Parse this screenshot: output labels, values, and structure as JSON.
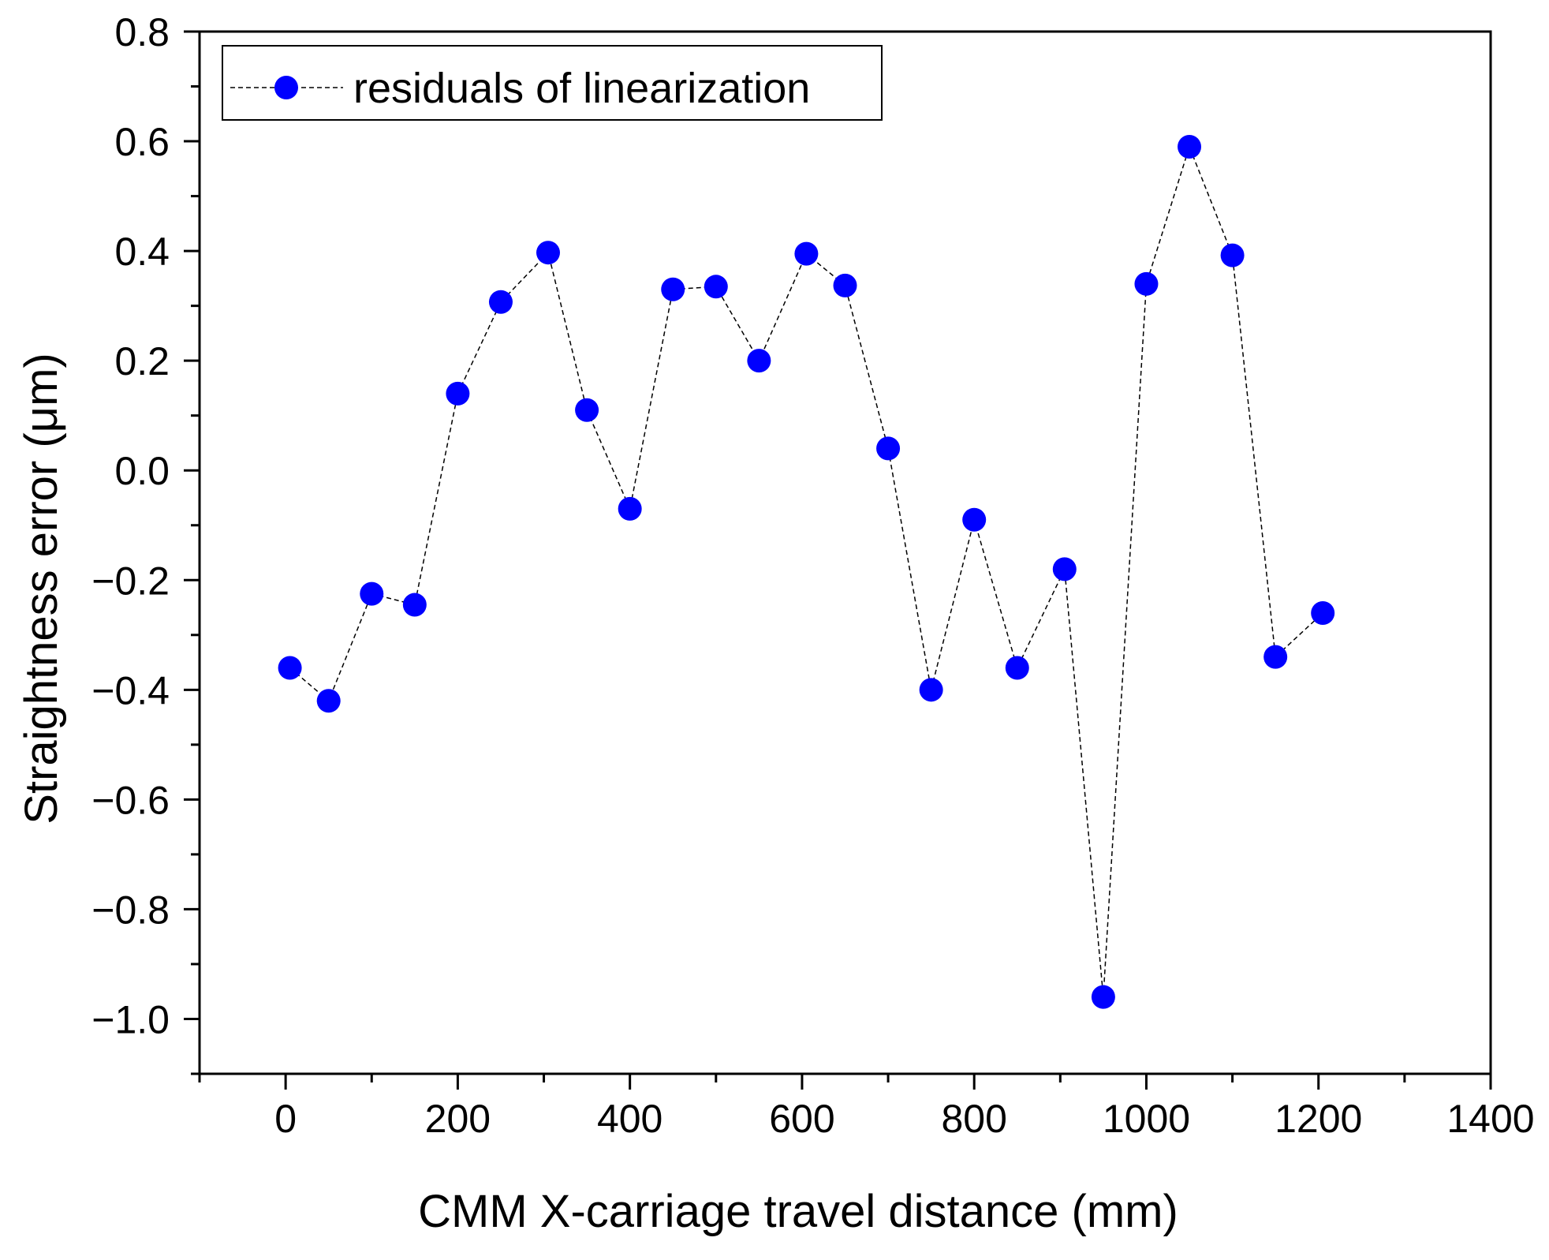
{
  "chart_data": {
    "type": "line",
    "title": "",
    "xlabel": "CMM X-carriage travel distance (mm)",
    "ylabel": "Straightness error (μm)",
    "xlim": [
      -100,
      1400
    ],
    "ylim": [
      -1.1,
      0.8
    ],
    "x_ticks": [
      0,
      200,
      400,
      600,
      800,
      1000,
      1200,
      1400
    ],
    "x_tick_labels": [
      "0",
      "200",
      "400",
      "600",
      "800",
      "1000",
      "1200",
      "1400"
    ],
    "x_minor_step": 100,
    "y_ticks": [
      -1.0,
      -0.8,
      -0.6,
      -0.4,
      -0.2,
      0.0,
      0.2,
      0.4,
      0.6,
      0.8
    ],
    "y_tick_labels": [
      "−1.0",
      "−0.8",
      "−0.6",
      "−0.4",
      "−0.2",
      "0.0",
      "0.2",
      "0.4",
      "0.6",
      "0.8"
    ],
    "y_minor_step": 0.1,
    "grid": false,
    "legend_position": "top-left",
    "series": [
      {
        "name": "residuals of linearization",
        "color": "#0000ff",
        "line_color": "#000000",
        "line_style": "dashed",
        "marker": "circle",
        "x": [
          5,
          50,
          100,
          150,
          200,
          250,
          305,
          350,
          400,
          450,
          500,
          550,
          605,
          650,
          700,
          750,
          800,
          850,
          905,
          950,
          1000,
          1050,
          1100,
          1150,
          1205
        ],
        "y": [
          -0.36,
          -0.42,
          -0.225,
          -0.245,
          0.14,
          0.307,
          0.397,
          0.11,
          -0.07,
          0.33,
          0.335,
          0.2,
          0.395,
          0.337,
          0.04,
          -0.4,
          -0.09,
          -0.36,
          -0.18,
          -0.96,
          0.34,
          0.59,
          0.392,
          -0.34,
          -0.26
        ]
      }
    ]
  }
}
